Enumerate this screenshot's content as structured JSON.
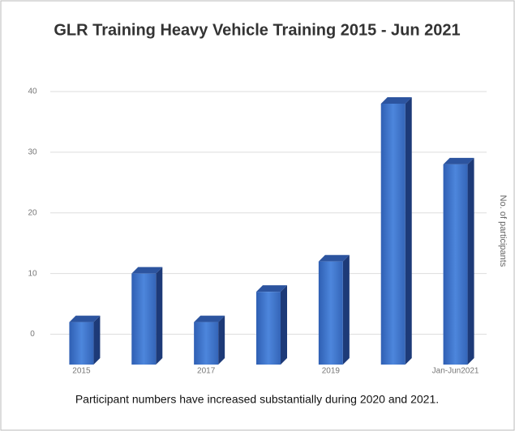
{
  "chart_data": {
    "type": "bar",
    "title": "GLR Training Heavy Vehicle Training 2015 - Jun 2021",
    "y_axis_label": "No. of participants",
    "caption": "Participant numbers have increased substantially during 2020 and 2021.",
    "categories": [
      "2015",
      null,
      "2017",
      null,
      "2019",
      null,
      "Jan-Jun2021"
    ],
    "values": [
      2,
      10,
      2,
      7,
      12,
      38,
      28
    ],
    "color": "#3b6fc4",
    "ylim": [
      -5,
      40
    ],
    "yticks": [
      0,
      10,
      20,
      30,
      40
    ],
    "grid": true
  }
}
